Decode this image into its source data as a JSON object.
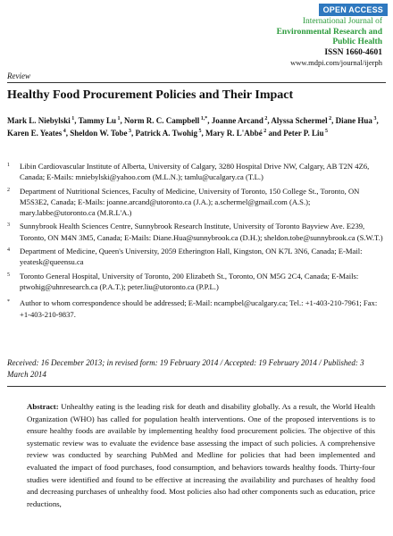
{
  "header": {
    "badge": "OPEN ACCESS",
    "journal_line1": "International Journal of",
    "journal_line2": "Environmental Research and",
    "journal_line3": "Public Health",
    "issn": "ISSN 1660-4601",
    "website": "www.mdpi.com/journal/ijerph"
  },
  "article_type": "Review",
  "title": "Healthy Food Procurement Policies and Their Impact",
  "authors": [
    {
      "name": "Mark L. Niebylski",
      "sup": "1"
    },
    {
      "name": "Tammy Lu",
      "sup": "1"
    },
    {
      "name": "Norm R. C. Campbell",
      "sup": "1,*"
    },
    {
      "name": "Joanne Arcand",
      "sup": "2"
    },
    {
      "name": "Alyssa Schermel",
      "sup": "2"
    },
    {
      "name": "Diane Hua",
      "sup": "3"
    },
    {
      "name": "Karen E. Yeates",
      "sup": "4"
    },
    {
      "name": "Sheldon W. Tobe",
      "sup": "3"
    },
    {
      "name": "Patrick A. Twohig",
      "sup": "5"
    },
    {
      "name": "Mary R. L'Abbé",
      "sup": "2"
    },
    {
      "name": "Peter P. Liu",
      "sup": "5"
    }
  ],
  "affiliations": [
    {
      "num": "1",
      "text": "Libin Cardiovascular Institute of Alberta, University of Calgary, 3280 Hospital Drive NW, Calgary, AB T2N 4Z6, Canada; E-Mails: mniebylski@yahoo.com (M.L.N.); tamlu@ucalgary.ca (T.L.)"
    },
    {
      "num": "2",
      "text": "Department of Nutritional Sciences, Faculty of Medicine, University of Toronto, 150 College St., Toronto, ON M5S3E2, Canada; E-Mails: joanne.arcand@utoronto.ca (J.A.); a.schermel@gmail.com (A.S.); mary.labbe@utoronto.ca (M.R.L'A.)"
    },
    {
      "num": "3",
      "text": "Sunnybrook Health Sciences Centre, Sunnybrook Research Institute, University of Toronto Bayview Ave. E239, Toronto, ON M4N 3M5, Canada; E-Mails: Diane.Hua@sunnybrook.ca (D.H.); sheldon.tobe@sunnybrook.ca (S.W.T.)"
    },
    {
      "num": "4",
      "text": "Department of Medicine, Queen's University, 2059 Etherington Hall, Kingston, ON K7L 3N6, Canada; E-Mail: yeatesk@queensu.ca"
    },
    {
      "num": "5",
      "text": "Toronto General Hospital, University of Toronto, 200 Elizabeth St., Toronto, ON M5G 2C4, Canada; E-Mails: ptwohig@uhnresearch.ca (P.A.T.); peter.liu@utoronto.ca (P.P.L.)"
    },
    {
      "num": "*",
      "text": "Author to whom correspondence should be addressed; E-Mail: ncampbel@ucalgary.ca; Tel.: +1-403-210-7961; Fax: +1-403-210-9837."
    }
  ],
  "dates": "Received: 16 December 2013; in revised form: 19 February 2014 / Accepted: 19 February 2014 / Published: 3 March 2014",
  "abstract": {
    "label": "Abstract:",
    "text": "Unhealthy eating is the leading risk for death and disability globally. As a result, the World Health Organization (WHO) has called for population health interventions. One of the proposed interventions is to ensure healthy foods are available by implementing healthy food procurement policies. The objective of this systematic review was to evaluate the evidence base assessing the impact of such policies. A comprehensive review was conducted by searching PubMed and Medline for policies that had been implemented and evaluated the impact of food purchases, food consumption, and behaviors towards healthy foods. Thirty-four studies were identified and found to be effective at increasing the availability and purchases of healthy food and decreasing purchases of unhealthy food. Most policies also had other components such as education, price reductions,"
  }
}
